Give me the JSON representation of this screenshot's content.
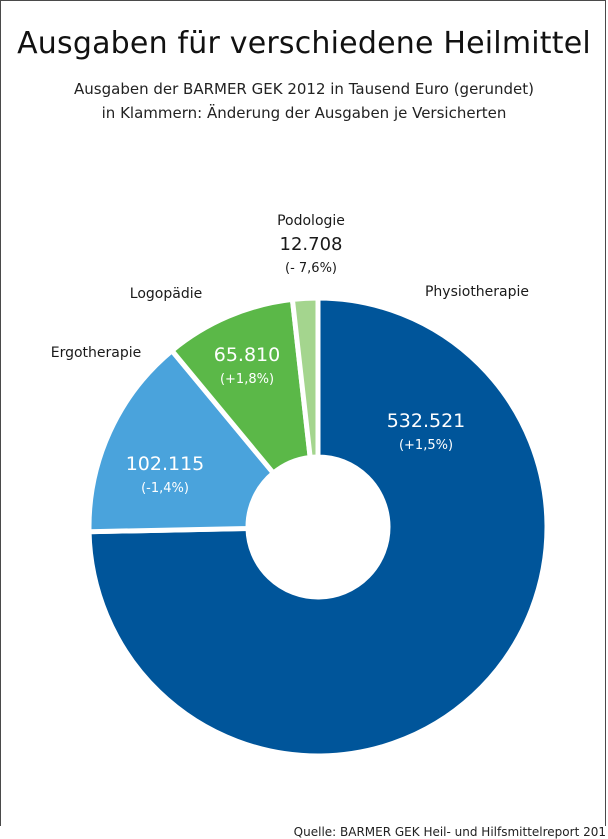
{
  "title": "Ausgaben für verschiedene Heilmittel",
  "subtitle_line1": "Ausgaben der BARMER GEK 2012 in Tausend Euro (gerundet)",
  "subtitle_line2": "in Klammern: Änderung der Ausgaben je Versicherten",
  "source": "Quelle: BARMER GEK Heil- und Hilfsmittelreport 201",
  "chart_data": {
    "type": "pie",
    "variant": "donut",
    "unit": "Tausend Euro",
    "slices": [
      {
        "label": "Physiotherapie",
        "value": 532521,
        "value_text": "532.521",
        "change_text": "(+1,5%)",
        "color": "#00559a",
        "text_color": "#ffffff"
      },
      {
        "label": "Ergotherapie",
        "value": 102115,
        "value_text": "102.115",
        "change_text": "(-1,4%)",
        "color": "#4aa3dc",
        "text_color": "#ffffff"
      },
      {
        "label": "Logopädie",
        "value": 65810,
        "value_text": "65.810",
        "change_text": "(+1,8%)",
        "color": "#5bb848",
        "text_color": "#ffffff"
      },
      {
        "label": "Podologie",
        "value": 12708,
        "value_text": "12.708",
        "change_text": "(- 7,6%)",
        "color": "#a4d58e",
        "text_color": "#222222"
      }
    ]
  }
}
